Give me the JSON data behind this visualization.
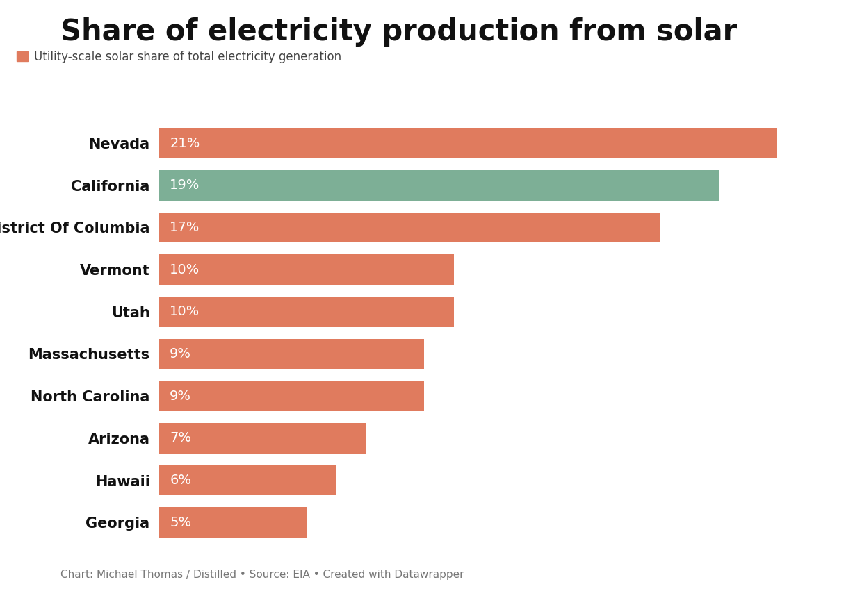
{
  "title": "Share of electricity production from solar",
  "legend_label": "Utility-scale solar share of total electricity generation",
  "caption": "Chart: Michael Thomas / Distilled • Source: EIA • Created with Datawrapper",
  "categories": [
    "Nevada",
    "California",
    "District Of Columbia",
    "Vermont",
    "Utah",
    "Massachusetts",
    "North Carolina",
    "Arizona",
    "Hawaii",
    "Georgia"
  ],
  "values": [
    21,
    19,
    17,
    10,
    10,
    9,
    9,
    7,
    6,
    5
  ],
  "labels": [
    "21%",
    "19%",
    "17%",
    "10%",
    "10%",
    "9%",
    "9%",
    "7%",
    "6%",
    "5%"
  ],
  "bar_colors": [
    "#E07B5E",
    "#7DAF96",
    "#E07B5E",
    "#E07B5E",
    "#E07B5E",
    "#E07B5E",
    "#E07B5E",
    "#E07B5E",
    "#E07B5E",
    "#E07B5E"
  ],
  "legend_color": "#E07B5E",
  "background_color": "#FFFFFF",
  "title_fontsize": 30,
  "label_fontsize": 14,
  "category_fontsize": 15,
  "caption_fontsize": 11,
  "xlim": [
    0,
    23
  ],
  "bar_height": 0.72,
  "figsize": [
    12.4,
    8.48
  ],
  "dpi": 100
}
